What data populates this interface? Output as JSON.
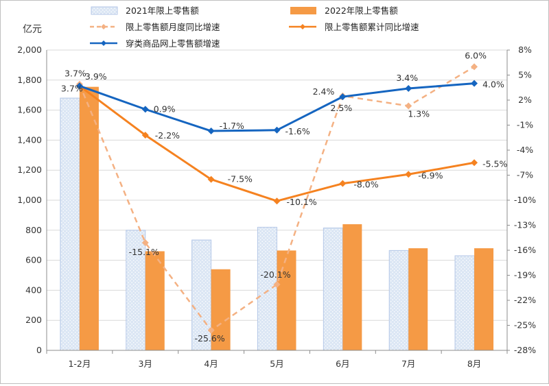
{
  "chart_data": {
    "type": "bar",
    "categories": [
      "1-2月",
      "3月",
      "4月",
      "5月",
      "6月",
      "7月",
      "8月"
    ],
    "y_unit": "亿元",
    "ylim": [
      0,
      2000
    ],
    "yticks": [
      "0",
      "200",
      "400",
      "600",
      "800",
      "1,000",
      "1,200",
      "1,400",
      "1,600",
      "1,800",
      "2,000"
    ],
    "y2lim": [
      -28,
      8
    ],
    "y2ticks": [
      "-28%",
      "-25%",
      "-22%",
      "-19%",
      "-16%",
      "-13%",
      "-10%",
      "-7%",
      "-4%",
      "-1%",
      "2%",
      "5%",
      "8%"
    ],
    "series": [
      {
        "name": "2021年限上零售额",
        "kind": "bar",
        "axis": "left",
        "color": "#dbe6f4",
        "values": [
          1680,
          800,
          735,
          820,
          815,
          665,
          630
        ]
      },
      {
        "name": "2022年限上零售额",
        "kind": "bar",
        "axis": "left",
        "color": "#f59a45",
        "values": [
          1755,
          660,
          540,
          665,
          840,
          680,
          680
        ]
      },
      {
        "name": "限上零售额月度同比增速",
        "kind": "line",
        "style": "dashed",
        "axis": "right",
        "color": "#f4b183",
        "values": [
          3.9,
          -15.1,
          -25.6,
          -20.1,
          2.5,
          1.3,
          6.0
        ],
        "labels": [
          "3.9%",
          "-15.1%",
          "-25.6%",
          "-20.1%",
          "2.5%",
          "1.3%",
          "6.0%"
        ]
      },
      {
        "name": "限上零售额累计同比增速",
        "kind": "line",
        "style": "solid",
        "axis": "right",
        "color": "#f58220",
        "values": [
          3.7,
          -2.2,
          -7.5,
          -10.1,
          -8.0,
          -6.9,
          -5.5
        ],
        "labels": [
          "3.7%",
          "-2.2%",
          "-7.5%",
          "-10.1%",
          "-8.0%",
          "-6.9%",
          "-5.5%"
        ]
      },
      {
        "name": "穿类商品网上零售额增速",
        "kind": "line",
        "style": "solid",
        "axis": "right",
        "color": "#1565c0",
        "values": [
          3.7,
          0.9,
          -1.7,
          -1.6,
          2.4,
          3.4,
          4.0
        ],
        "labels": [
          "3.7%",
          "0.9%",
          "-1.7%",
          "-1.6%",
          "2.4%",
          "3.4%",
          "4.0%"
        ]
      }
    ]
  }
}
